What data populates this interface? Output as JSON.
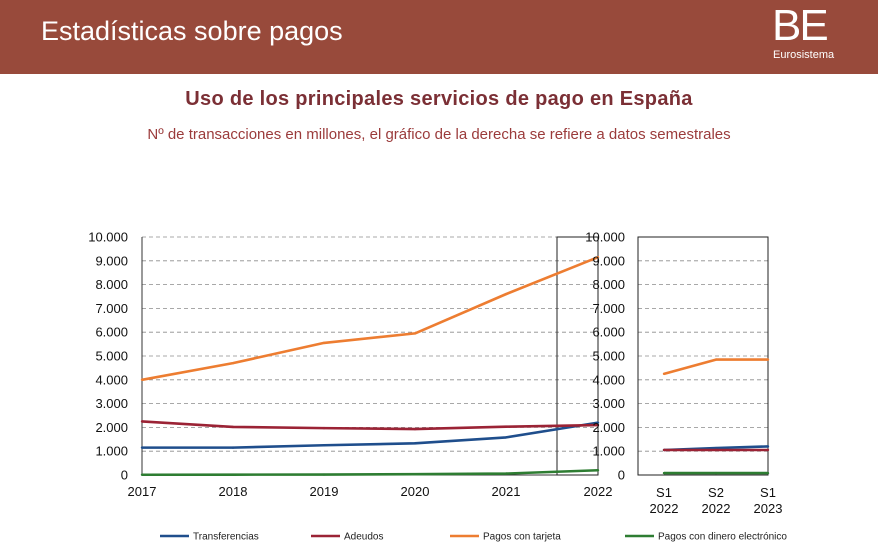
{
  "header": {
    "title": "Estadísticas sobre pagos",
    "logo_mark": "BE",
    "logo_sub": "Eurosistema",
    "background": "#984a3b"
  },
  "chart_data": [
    {
      "type": "line",
      "title": "Uso de los principales servicios de pago en España",
      "subtitle": "Nº de transacciones en millones, el gráfico de la derecha se refiere a datos semestrales",
      "x": [
        "2017",
        "2018",
        "2019",
        "2020",
        "2021",
        "2022"
      ],
      "ylim": [
        0,
        10000
      ],
      "yticks": [
        "0",
        "1.000",
        "2.000",
        "3.000",
        "4.000",
        "5.000",
        "6.000",
        "7.000",
        "8.000",
        "9.000",
        "10.000"
      ],
      "grid": true,
      "highlight_category": "2022",
      "series": [
        {
          "name": "Transferencias",
          "color": "#1f4e8c",
          "values": [
            1150,
            1150,
            1250,
            1330,
            1580,
            2200
          ]
        },
        {
          "name": "Adeudos",
          "color": "#9b2335",
          "values": [
            2250,
            2020,
            1970,
            1930,
            2030,
            2100
          ]
        },
        {
          "name": "Pagos con tarjeta",
          "color": "#ed7d31",
          "values": [
            4000,
            4700,
            5550,
            5950,
            7600,
            9150
          ]
        },
        {
          "name": "Pagos con dinero electrónico",
          "color": "#2e7d32",
          "values": [
            10,
            15,
            20,
            35,
            60,
            200
          ]
        }
      ],
      "legend_position": "bottom"
    },
    {
      "type": "line",
      "x": [
        [
          "S1",
          "2022"
        ],
        [
          "S2",
          "2022"
        ],
        [
          "S1",
          "2023"
        ]
      ],
      "ylim": [
        0,
        10000
      ],
      "yticks": [
        "0",
        "1.000",
        "2.000",
        "3.000",
        "4.000",
        "5.000",
        "6.000",
        "7.000",
        "8.000",
        "9.000",
        "10.000"
      ],
      "grid": true,
      "series": [
        {
          "name": "Transferencias",
          "color": "#1f4e8c",
          "values": [
            1050,
            1130,
            1200
          ]
        },
        {
          "name": "Adeudos",
          "color": "#9b2335",
          "values": [
            1050,
            1050,
            1050
          ]
        },
        {
          "name": "Pagos con tarjeta",
          "color": "#ed7d31",
          "values": [
            4250,
            4850,
            4850
          ]
        },
        {
          "name": "Pagos con dinero electrónico",
          "color": "#2e7d32",
          "values": [
            80,
            80,
            80
          ]
        }
      ]
    }
  ]
}
